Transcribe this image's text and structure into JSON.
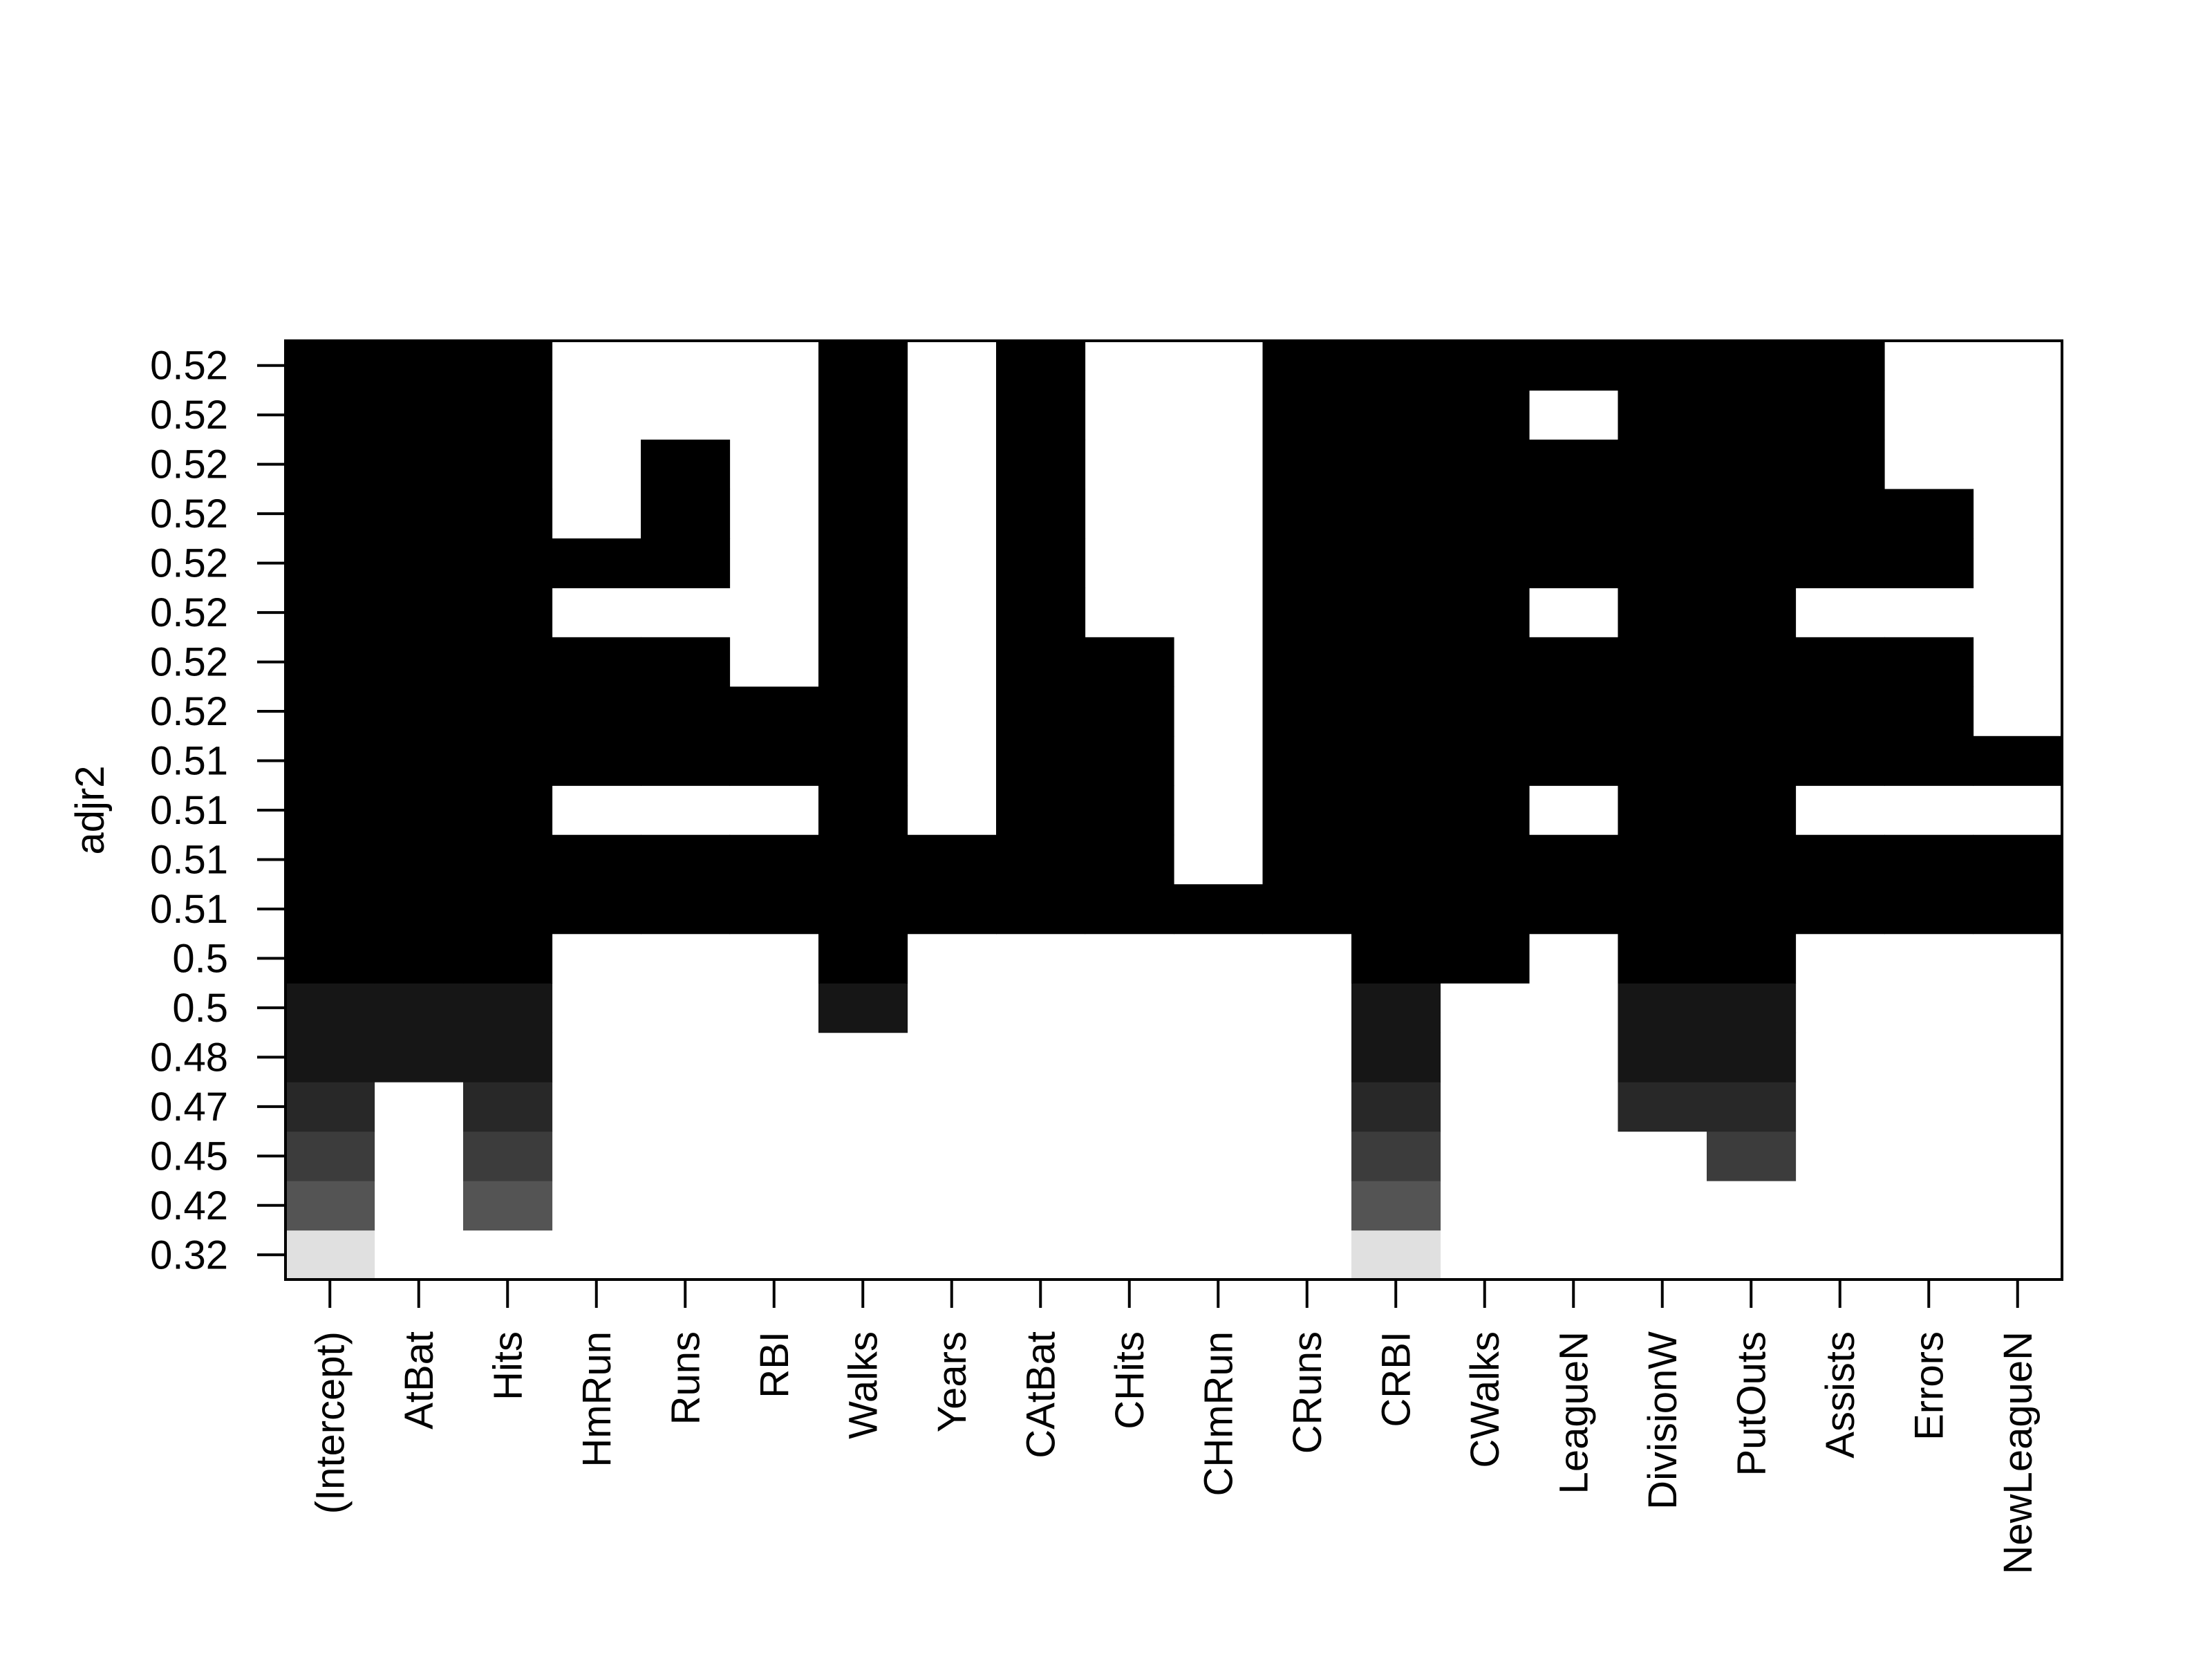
{
  "chart_data": {
    "type": "heatmap",
    "title": "",
    "ylabel": "adjr2",
    "xlabel": "",
    "variables": [
      "(Intercept)",
      "AtBat",
      "Hits",
      "HmRun",
      "Runs",
      "RBI",
      "Walks",
      "Years",
      "CAtBat",
      "CHits",
      "CHmRun",
      "CRuns",
      "CRBI",
      "CWalks",
      "LeagueN",
      "DivisionW",
      "PutOuts",
      "Assists",
      "Errors",
      "NewLeagueN"
    ],
    "rows": [
      {
        "adjr2": "0.32",
        "included": [
          1,
          0,
          0,
          0,
          0,
          0,
          0,
          0,
          0,
          0,
          0,
          0,
          1,
          0,
          0,
          0,
          0,
          0,
          0,
          0
        ]
      },
      {
        "adjr2": "0.42",
        "included": [
          1,
          0,
          1,
          0,
          0,
          0,
          0,
          0,
          0,
          0,
          0,
          0,
          1,
          0,
          0,
          0,
          0,
          0,
          0,
          0
        ]
      },
      {
        "adjr2": "0.45",
        "included": [
          1,
          0,
          1,
          0,
          0,
          0,
          0,
          0,
          0,
          0,
          0,
          0,
          1,
          0,
          0,
          0,
          1,
          0,
          0,
          0
        ]
      },
      {
        "adjr2": "0.47",
        "included": [
          1,
          0,
          1,
          0,
          0,
          0,
          0,
          0,
          0,
          0,
          0,
          0,
          1,
          0,
          0,
          1,
          1,
          0,
          0,
          0
        ]
      },
      {
        "adjr2": "0.48",
        "included": [
          1,
          1,
          1,
          0,
          0,
          0,
          0,
          0,
          0,
          0,
          0,
          0,
          1,
          0,
          0,
          1,
          1,
          0,
          0,
          0
        ]
      },
      {
        "adjr2": "0.5",
        "included": [
          1,
          1,
          1,
          0,
          0,
          0,
          1,
          0,
          0,
          0,
          0,
          0,
          1,
          0,
          0,
          1,
          1,
          0,
          0,
          0
        ]
      },
      {
        "adjr2": "0.5",
        "included": [
          1,
          1,
          1,
          0,
          0,
          0,
          1,
          0,
          0,
          0,
          0,
          0,
          1,
          1,
          0,
          1,
          1,
          0,
          0,
          0
        ]
      },
      {
        "adjr2": "0.51",
        "included": [
          1,
          1,
          1,
          1,
          1,
          1,
          1,
          1,
          1,
          1,
          1,
          1,
          1,
          1,
          1,
          1,
          1,
          1,
          1,
          1
        ]
      },
      {
        "adjr2": "0.51",
        "included": [
          1,
          1,
          1,
          1,
          1,
          1,
          1,
          1,
          1,
          1,
          0,
          1,
          1,
          1,
          1,
          1,
          1,
          1,
          1,
          1
        ]
      },
      {
        "adjr2": "0.51",
        "included": [
          1,
          1,
          1,
          0,
          0,
          0,
          1,
          0,
          1,
          1,
          0,
          1,
          1,
          1,
          0,
          1,
          1,
          0,
          0,
          0
        ]
      },
      {
        "adjr2": "0.51",
        "included": [
          1,
          1,
          1,
          1,
          1,
          1,
          1,
          0,
          1,
          1,
          0,
          1,
          1,
          1,
          1,
          1,
          1,
          1,
          1,
          1
        ]
      },
      {
        "adjr2": "0.52",
        "included": [
          1,
          1,
          1,
          1,
          1,
          1,
          1,
          0,
          1,
          1,
          0,
          1,
          1,
          1,
          1,
          1,
          1,
          1,
          1,
          0
        ]
      },
      {
        "adjr2": "0.52",
        "included": [
          1,
          1,
          1,
          1,
          1,
          0,
          1,
          0,
          1,
          1,
          0,
          1,
          1,
          1,
          1,
          1,
          1,
          1,
          1,
          0
        ]
      },
      {
        "adjr2": "0.52",
        "included": [
          1,
          1,
          1,
          0,
          0,
          0,
          1,
          0,
          1,
          0,
          0,
          1,
          1,
          1,
          0,
          1,
          1,
          0,
          0,
          0
        ]
      },
      {
        "adjr2": "0.52",
        "included": [
          1,
          1,
          1,
          1,
          1,
          0,
          1,
          0,
          1,
          0,
          0,
          1,
          1,
          1,
          1,
          1,
          1,
          1,
          1,
          0
        ]
      },
      {
        "adjr2": "0.52",
        "included": [
          1,
          1,
          1,
          0,
          1,
          0,
          1,
          0,
          1,
          0,
          0,
          1,
          1,
          1,
          1,
          1,
          1,
          1,
          1,
          0
        ]
      },
      {
        "adjr2": "0.52",
        "included": [
          1,
          1,
          1,
          0,
          1,
          0,
          1,
          0,
          1,
          0,
          0,
          1,
          1,
          1,
          1,
          1,
          1,
          1,
          0,
          0
        ]
      },
      {
        "adjr2": "0.52",
        "included": [
          1,
          1,
          1,
          0,
          0,
          0,
          1,
          0,
          1,
          0,
          0,
          1,
          1,
          1,
          0,
          1,
          1,
          1,
          0,
          0
        ]
      },
      {
        "adjr2": "0.52",
        "included": [
          1,
          1,
          1,
          0,
          0,
          0,
          1,
          0,
          1,
          0,
          0,
          1,
          1,
          1,
          1,
          1,
          1,
          1,
          0,
          0
        ]
      }
    ],
    "row_shades": [
      "#e0e0e0",
      "#545454",
      "#3c3c3c",
      "#282828",
      "#161616",
      "#161616",
      "#000000",
      "#000000",
      "#000000",
      "#000000",
      "#000000",
      "#000000",
      "#000000",
      "#000000",
      "#000000",
      "#000000",
      "#000000",
      "#000000",
      "#000000"
    ],
    "grid": false,
    "legend": "none"
  }
}
